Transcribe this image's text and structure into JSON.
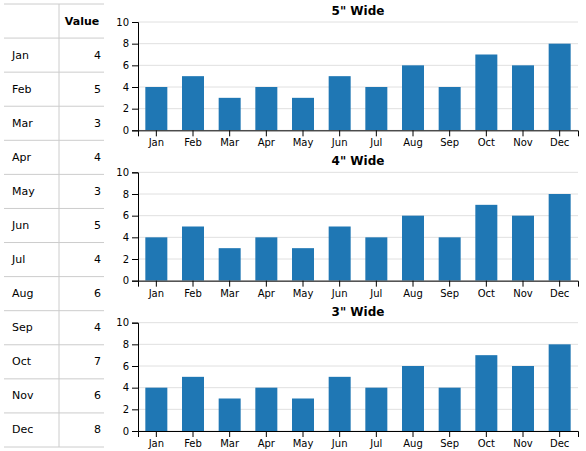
{
  "chart_data": [
    {
      "type": "table",
      "title": "Value",
      "categories": [
        "Jan",
        "Feb",
        "Mar",
        "Apr",
        "May",
        "Jun",
        "Jul",
        "Aug",
        "Sep",
        "Oct",
        "Nov",
        "Dec"
      ],
      "values": [
        4,
        5,
        3,
        4,
        3,
        5,
        4,
        6,
        4,
        7,
        6,
        8
      ]
    },
    {
      "type": "bar",
      "title": "5\" Wide",
      "categories": [
        "Jan",
        "Feb",
        "Mar",
        "Apr",
        "May",
        "Jun",
        "Jul",
        "Aug",
        "Sep",
        "Oct",
        "Nov",
        "Dec"
      ],
      "values": [
        4,
        5,
        3,
        4,
        3,
        5,
        4,
        6,
        4,
        7,
        6,
        8
      ],
      "ylim": [
        0,
        10
      ],
      "yticks": [
        0,
        2,
        4,
        6,
        8,
        10
      ],
      "grid": true
    },
    {
      "type": "bar",
      "title": "4\" Wide",
      "categories": [
        "Jan",
        "Feb",
        "Mar",
        "Apr",
        "May",
        "Jun",
        "Jul",
        "Aug",
        "Sep",
        "Oct",
        "Nov",
        "Dec"
      ],
      "values": [
        4,
        5,
        3,
        4,
        3,
        5,
        4,
        6,
        4,
        7,
        6,
        8
      ],
      "ylim": [
        0,
        10
      ],
      "yticks": [
        0,
        2,
        4,
        6,
        8,
        10
      ],
      "grid": true
    },
    {
      "type": "bar",
      "title": "3\" Wide",
      "categories": [
        "Jan",
        "Feb",
        "Mar",
        "Apr",
        "May",
        "Jun",
        "Jul",
        "Aug",
        "Sep",
        "Oct",
        "Nov",
        "Dec"
      ],
      "values": [
        4,
        5,
        3,
        4,
        3,
        5,
        4,
        6,
        4,
        7,
        6,
        8
      ],
      "ylim": [
        0,
        10
      ],
      "yticks": [
        0,
        2,
        4,
        6,
        8,
        10
      ],
      "grid": true
    }
  ]
}
